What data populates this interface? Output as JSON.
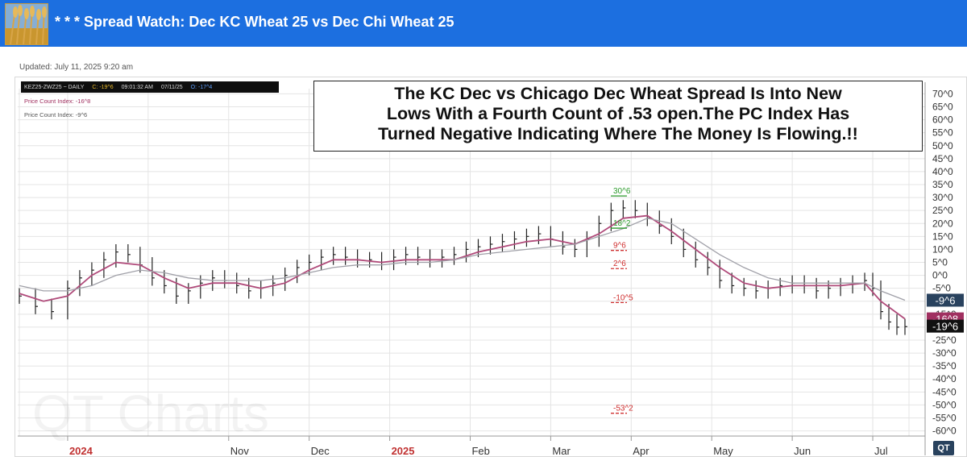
{
  "header": {
    "title": "* * * Spread Watch: Dec KC Wheat 25 vs Dec Chi Wheat 25",
    "bar_color": "#1c6fe0"
  },
  "updated": "Updated: July 11, 2025 9:20 am",
  "symbol_box": {
    "symbol": "KEZ25-ZWZ25 ~ DAILY",
    "close": "C: -19^6",
    "time": "09:01:32 AM",
    "date": "07/11/25",
    "open": "O: -17^4"
  },
  "indicators": {
    "pci_1": "Price Count Index: -16^8",
    "pci_2": "Price Count Index: -9^6"
  },
  "annotation": {
    "lines": [
      "The KC Dec vs Chicago Dec Wheat Spread Is  Into New",
      "Lows With a Fourth Count of .53 open.The PC Index Has",
      "Turned   Negative Indicating Where The Money Is Flowing.!!"
    ]
  },
  "watermark": "QT Charts",
  "qt_badge": "QT",
  "chart_data": {
    "type": "bar",
    "title": "",
    "xlabel": "",
    "ylabel": "",
    "ylim": [
      -62,
      72
    ],
    "y_ticks": [
      "70^0",
      "65^0",
      "60^0",
      "55^0",
      "50^0",
      "45^0",
      "40^0",
      "35^0",
      "30^0",
      "25^0",
      "20^0",
      "15^0",
      "10^0",
      "5^0",
      "0^0",
      "-5^0",
      "-10^0",
      "-15^0",
      "-20^0",
      "-25^0",
      "-30^0",
      "-35^0",
      "-40^0",
      "-45^0",
      "-50^0",
      "-55^0",
      "-60^0"
    ],
    "y_tick_values": [
      70,
      65,
      60,
      55,
      50,
      45,
      40,
      35,
      30,
      25,
      20,
      15,
      10,
      5,
      0,
      -5,
      -10,
      -15,
      -20,
      -25,
      -30,
      -35,
      -40,
      -45,
      -50,
      -55,
      -60
    ],
    "x_labels": [
      {
        "label": "2024",
        "month_index": 0,
        "red": true
      },
      {
        "label": "Nov",
        "month_index": 2,
        "red": false
      },
      {
        "label": "Dec",
        "month_index": 3,
        "red": false
      },
      {
        "label": "2025",
        "month_index": 4,
        "red": true
      },
      {
        "label": "Feb",
        "month_index": 5,
        "red": false
      },
      {
        "label": "Mar",
        "month_index": 6,
        "red": false
      },
      {
        "label": "Apr",
        "month_index": 7,
        "red": false
      },
      {
        "label": "May",
        "month_index": 8,
        "red": false
      },
      {
        "label": "Jun",
        "month_index": 9,
        "red": false
      },
      {
        "label": "Jul",
        "month_index": 10,
        "red": false
      }
    ],
    "month_boundaries": [
      -0.6,
      0,
      1,
      2,
      3,
      4,
      5,
      6,
      7,
      8,
      9,
      10,
      10.45
    ],
    "series": [
      {
        "name": "Spread",
        "color": "#222222",
        "points": [
          [
            -0.6,
            -8
          ],
          [
            -0.4,
            -12
          ],
          [
            -0.2,
            -14
          ],
          [
            0.0,
            -5
          ],
          [
            0.15,
            -1
          ],
          [
            0.3,
            2
          ],
          [
            0.45,
            6
          ],
          [
            0.6,
            9
          ],
          [
            0.75,
            8
          ],
          [
            0.9,
            4
          ],
          [
            1.05,
            -1
          ],
          [
            1.2,
            -4
          ],
          [
            1.35,
            -8
          ],
          [
            1.5,
            -6
          ],
          [
            1.65,
            -3
          ],
          [
            1.8,
            -1
          ],
          [
            1.95,
            -2
          ],
          [
            2.1,
            -4
          ],
          [
            2.25,
            -6
          ],
          [
            2.4,
            -5
          ],
          [
            2.55,
            -3
          ],
          [
            2.7,
            0
          ],
          [
            2.85,
            3
          ],
          [
            3.0,
            5
          ],
          [
            3.15,
            7
          ],
          [
            3.3,
            8
          ],
          [
            3.45,
            7
          ],
          [
            3.6,
            6
          ],
          [
            3.75,
            6
          ],
          [
            3.9,
            5
          ],
          [
            4.05,
            7
          ],
          [
            4.2,
            8
          ],
          [
            4.35,
            7
          ],
          [
            4.5,
            6
          ],
          [
            4.65,
            7
          ],
          [
            4.8,
            8
          ],
          [
            4.95,
            10
          ],
          [
            5.1,
            11
          ],
          [
            5.25,
            12
          ],
          [
            5.4,
            13
          ],
          [
            5.55,
            14
          ],
          [
            5.7,
            15
          ],
          [
            5.85,
            16
          ],
          [
            6.0,
            14
          ],
          [
            6.15,
            11
          ],
          [
            6.3,
            10
          ],
          [
            6.45,
            14
          ],
          [
            6.6,
            20
          ],
          [
            6.75,
            25
          ],
          [
            6.9,
            26
          ],
          [
            7.05,
            25
          ],
          [
            7.2,
            22
          ],
          [
            7.35,
            19
          ],
          [
            7.5,
            15
          ],
          [
            7.65,
            10
          ],
          [
            7.8,
            6
          ],
          [
            7.95,
            3
          ],
          [
            8.1,
            -2
          ],
          [
            8.25,
            -4
          ],
          [
            8.4,
            -5
          ],
          [
            8.55,
            -6
          ],
          [
            8.7,
            -5
          ],
          [
            8.85,
            -4
          ],
          [
            9.0,
            -3
          ],
          [
            9.15,
            -4
          ],
          [
            9.3,
            -6
          ],
          [
            9.45,
            -5
          ],
          [
            9.6,
            -4
          ],
          [
            9.75,
            -3
          ],
          [
            9.9,
            -2
          ],
          [
            10.0,
            -5
          ],
          [
            10.1,
            -14
          ],
          [
            10.2,
            -18
          ],
          [
            10.3,
            -20
          ],
          [
            10.4,
            -19.8
          ]
        ]
      },
      {
        "name": "Average 1",
        "color": "#b04a7a",
        "points": [
          [
            -0.6,
            -7
          ],
          [
            -0.3,
            -10
          ],
          [
            0.0,
            -8
          ],
          [
            0.3,
            0
          ],
          [
            0.6,
            5
          ],
          [
            0.9,
            4
          ],
          [
            1.2,
            -1
          ],
          [
            1.5,
            -5
          ],
          [
            1.8,
            -3
          ],
          [
            2.1,
            -3
          ],
          [
            2.4,
            -5
          ],
          [
            2.7,
            -3
          ],
          [
            3.0,
            2
          ],
          [
            3.3,
            6
          ],
          [
            3.6,
            6
          ],
          [
            3.9,
            5
          ],
          [
            4.2,
            6
          ],
          [
            4.5,
            6
          ],
          [
            4.8,
            6
          ],
          [
            5.1,
            9
          ],
          [
            5.4,
            11
          ],
          [
            5.7,
            13
          ],
          [
            6.0,
            14
          ],
          [
            6.3,
            12
          ],
          [
            6.6,
            16
          ],
          [
            6.9,
            22
          ],
          [
            7.2,
            23
          ],
          [
            7.5,
            17
          ],
          [
            7.8,
            10
          ],
          [
            8.1,
            3
          ],
          [
            8.4,
            -3
          ],
          [
            8.7,
            -5
          ],
          [
            9.0,
            -4
          ],
          [
            9.3,
            -4
          ],
          [
            9.6,
            -4
          ],
          [
            9.9,
            -3
          ],
          [
            10.1,
            -10
          ],
          [
            10.4,
            -16.8
          ]
        ]
      },
      {
        "name": "Average 2",
        "color": "#a0a0a8",
        "points": [
          [
            -0.6,
            -4
          ],
          [
            -0.3,
            -6
          ],
          [
            0.0,
            -6
          ],
          [
            0.3,
            -4
          ],
          [
            0.6,
            0
          ],
          [
            0.9,
            2
          ],
          [
            1.2,
            1
          ],
          [
            1.5,
            -1
          ],
          [
            1.8,
            -2
          ],
          [
            2.1,
            -2
          ],
          [
            2.4,
            -2
          ],
          [
            2.7,
            -1
          ],
          [
            3.0,
            1
          ],
          [
            3.3,
            3
          ],
          [
            3.6,
            4
          ],
          [
            3.9,
            4
          ],
          [
            4.2,
            5
          ],
          [
            4.5,
            5
          ],
          [
            4.8,
            6
          ],
          [
            5.1,
            8
          ],
          [
            5.4,
            9
          ],
          [
            5.7,
            10
          ],
          [
            6.0,
            11
          ],
          [
            6.3,
            12
          ],
          [
            6.6,
            15
          ],
          [
            6.9,
            18
          ],
          [
            7.2,
            22
          ],
          [
            7.5,
            20
          ],
          [
            7.8,
            14
          ],
          [
            8.1,
            8
          ],
          [
            8.4,
            3
          ],
          [
            8.7,
            -1
          ],
          [
            9.0,
            -3
          ],
          [
            9.3,
            -3
          ],
          [
            9.6,
            -3
          ],
          [
            9.9,
            -3
          ],
          [
            10.1,
            -6
          ],
          [
            10.4,
            -9.6
          ]
        ]
      }
    ],
    "price_count_marks": [
      {
        "label": "30^6",
        "value": 30.6,
        "color": "#2a9a2a"
      },
      {
        "label": "18^2",
        "value": 18.2,
        "color": "#2a9a2a"
      },
      {
        "label": "9^6",
        "value": 9.6,
        "color": "#d03030"
      },
      {
        "label": "2^6",
        "value": 2.6,
        "color": "#d03030"
      },
      {
        "label": "-10^5",
        "value": -10.5,
        "color": "#d03030"
      },
      {
        "label": "-53^2",
        "value": -53.2,
        "color": "#d03030"
      }
    ],
    "right_markers": [
      {
        "label": "-9^6",
        "value": -9.6,
        "color": "#29425e"
      },
      {
        "label": "-16^8",
        "value": -16.8,
        "color": "#a03060"
      },
      {
        "label": "-19^6",
        "value": -19.6,
        "color": "#111111"
      }
    ],
    "grid": true
  }
}
